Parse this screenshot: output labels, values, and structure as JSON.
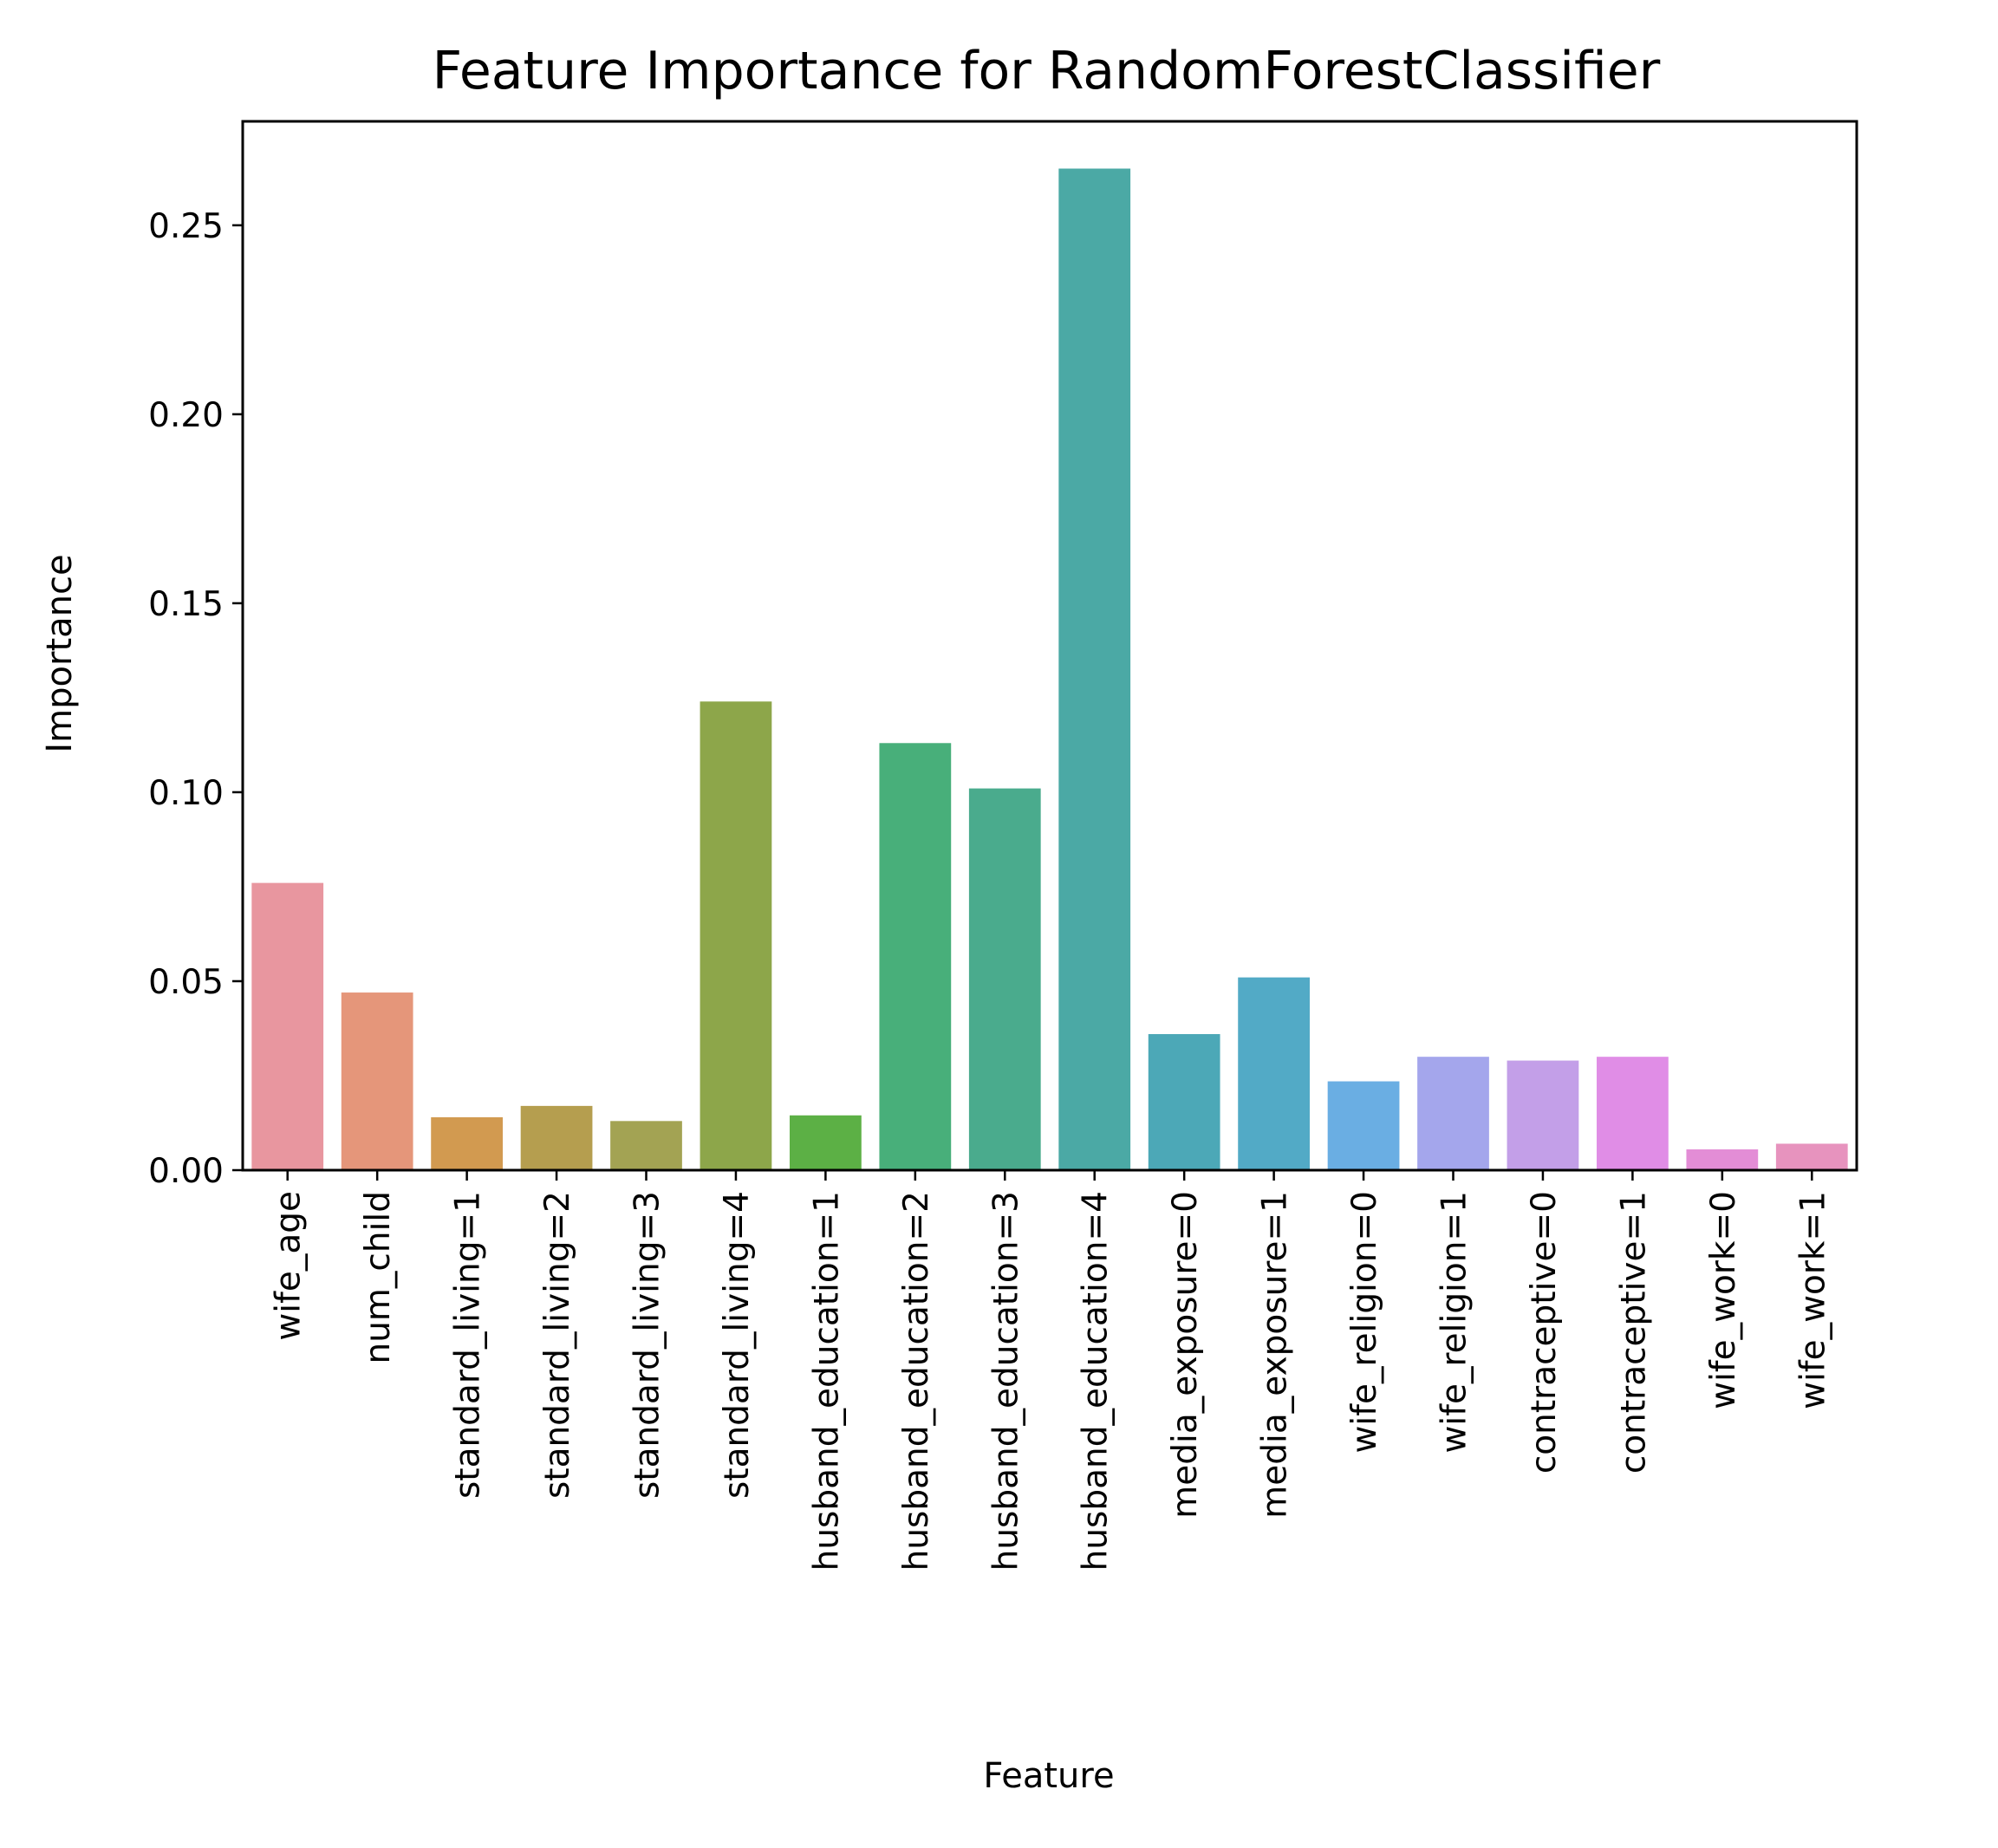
{
  "chart_data": {
    "type": "bar",
    "title": "Feature Importance for RandomForestClassifier",
    "xlabel": "Feature",
    "ylabel": "Importance",
    "ylim": [
      0,
      0.2775
    ],
    "yticks": [
      0.0,
      0.05,
      0.1,
      0.15,
      0.2,
      0.25
    ],
    "ytick_labels": [
      "0.00",
      "0.05",
      "0.10",
      "0.15",
      "0.20",
      "0.25"
    ],
    "grid": false,
    "legend": "none",
    "categories": [
      "wife_age",
      "num_child",
      "standard_living=1",
      "standard_living=2",
      "standard_living=3",
      "standard_living=4",
      "husband_education=1",
      "husband_education=2",
      "husband_education=3",
      "husband_education=4",
      "media_exposure=0",
      "media_exposure=1",
      "wife_religion=0",
      "wife_religion=1",
      "contraceptive=0",
      "contraceptive=1",
      "wife_work=0",
      "wife_work=1"
    ],
    "values": [
      0.076,
      0.047,
      0.014,
      0.017,
      0.013,
      0.124,
      0.0145,
      0.113,
      0.101,
      0.265,
      0.036,
      0.051,
      0.0235,
      0.03,
      0.029,
      0.03,
      0.0055,
      0.007
    ],
    "colors": [
      "#e8969f",
      "#e5967a",
      "#d29a50",
      "#b59e4f",
      "#a3a353",
      "#8da64a",
      "#5cb045",
      "#48af7a",
      "#4aab8d",
      "#4ba9a5",
      "#4ca8b7",
      "#52aac6",
      "#6aaee3",
      "#a4a6ec",
      "#c39fe8",
      "#e08de6",
      "#e38dd6",
      "#e793be"
    ]
  }
}
